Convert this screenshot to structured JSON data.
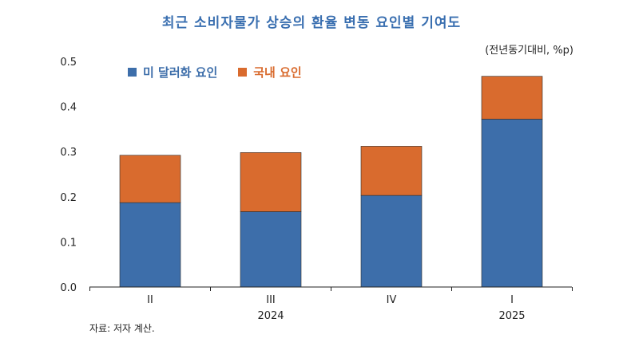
{
  "title": "최근 소비자물가 상승의 환율 변동 요인별 기여도",
  "unit": "(전년동기대비, %p)",
  "source": "자료: 저자 계산.",
  "colors": {
    "series1": "#3d6eaa",
    "series2": "#d96b2e",
    "title": "#3a6fb0"
  },
  "chart_data": {
    "type": "bar",
    "stacked": true,
    "categories": [
      "II",
      "III",
      "IV",
      "I"
    ],
    "year_labels": [
      {
        "label": "2024",
        "under": "III"
      },
      {
        "label": "2025",
        "under": "I"
      }
    ],
    "series": [
      {
        "name": "미 달러화 요인",
        "values": [
          0.187,
          0.167,
          0.203,
          0.372
        ]
      },
      {
        "name": "국내 요인",
        "values": [
          0.105,
          0.131,
          0.109,
          0.095
        ]
      }
    ],
    "ylim": [
      0,
      0.5
    ],
    "yticks": [
      "0.0",
      "0.1",
      "0.2",
      "0.3",
      "0.4",
      "0.5"
    ],
    "legend_position": "top-left",
    "grid": false
  }
}
